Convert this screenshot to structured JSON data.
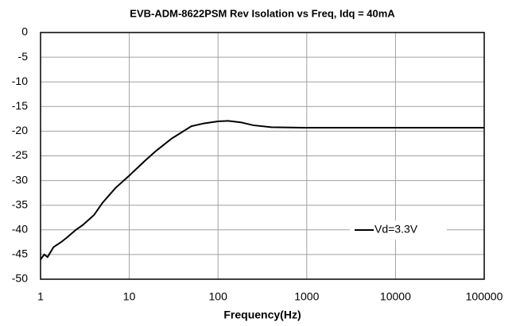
{
  "chart_data": {
    "type": "line",
    "title": "EVB-ADM-8622PSM Rev Isolation vs Freq, Idq = 40mA",
    "x_label": "Frequency(Hz)",
    "x": [
      1,
      1.1,
      1.2,
      1.4,
      1.7,
      2,
      2.5,
      3,
      4,
      5,
      7,
      10,
      15,
      20,
      30,
      50,
      70,
      100,
      130,
      180,
      250,
      400,
      1000,
      10000,
      100000
    ],
    "series": [
      {
        "name": "Vd=3.3V",
        "color": "#000000",
        "values": [
          -46,
          -45,
          -45.5,
          -43.5,
          -42.5,
          -41.5,
          -40,
          -39,
          -37,
          -34.5,
          -31.5,
          -29,
          -26,
          -24,
          -21.5,
          -19,
          -18.4,
          -18,
          -17.9,
          -18.2,
          -18.8,
          -19.2,
          -19.3,
          -19.3,
          -19.3
        ]
      }
    ],
    "xlim": [
      1,
      100000
    ],
    "xticks": [
      1,
      10,
      100,
      1000,
      10000,
      100000
    ],
    "xscale": "log",
    "ylim": [
      -50,
      0
    ],
    "yticks": [
      0,
      -5,
      -10,
      -15,
      -20,
      -25,
      -30,
      -35,
      -40,
      -45,
      -50
    ],
    "grid": true,
    "legend_loc": "lower right"
  }
}
